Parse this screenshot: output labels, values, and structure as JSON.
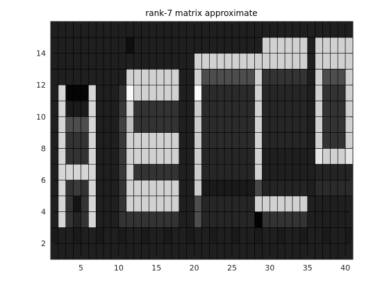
{
  "chart_data": {
    "type": "heatmap",
    "title": "rank-7 matrix approximate",
    "colormap": "gray",
    "x": [
      1,
      2,
      3,
      4,
      5,
      6,
      7,
      8,
      9,
      10,
      11,
      12,
      13,
      14,
      15,
      16,
      17,
      18,
      19,
      20,
      21,
      22,
      23,
      24,
      25,
      26,
      27,
      28,
      29,
      30,
      31,
      32,
      33,
      34,
      35,
      36,
      37,
      38,
      39,
      40
    ],
    "y": [
      1,
      2,
      3,
      4,
      5,
      6,
      7,
      8,
      9,
      10,
      11,
      12,
      13,
      14,
      15
    ],
    "xlim": [
      1,
      41
    ],
    "ylim": [
      1,
      16
    ],
    "xticks": [
      5,
      10,
      15,
      20,
      25,
      30,
      35,
      40
    ],
    "yticks": [
      2,
      4,
      6,
      8,
      10,
      12,
      14
    ],
    "clim": [
      0,
      1
    ],
    "grid": false,
    "background_level": 0.12,
    "z": [
      [
        0.12,
        0.12,
        0.12,
        0.12,
        0.12,
        0.12,
        0.12,
        0.12,
        0.12,
        0.12,
        0.12,
        0.12,
        0.12,
        0.12,
        0.12,
        0.12,
        0.12,
        0.12,
        0.12,
        0.12,
        0.12,
        0.12,
        0.12,
        0.12,
        0.12,
        0.12,
        0.12,
        0.12,
        0.12,
        0.12,
        0.12,
        0.12,
        0.12,
        0.12,
        0.12,
        0.12,
        0.12,
        0.12,
        0.12,
        0.12
      ],
      [
        0.1,
        0.12,
        0.12,
        0.1,
        0.12,
        0.12,
        0.1,
        0.12,
        0.12,
        0.1,
        0.12,
        0.12,
        0.1,
        0.12,
        0.12,
        0.1,
        0.12,
        0.12,
        0.1,
        0.12,
        0.12,
        0.1,
        0.12,
        0.12,
        0.1,
        0.12,
        0.12,
        0.1,
        0.12,
        0.12,
        0.1,
        0.12,
        0.12,
        0.1,
        0.12,
        0.12,
        0.1,
        0.12,
        0.12,
        0.1
      ],
      [
        0.12,
        0.84,
        0.2,
        0.14,
        0.2,
        0.84,
        0.12,
        0.12,
        0.12,
        0.2,
        0.2,
        0.2,
        0.2,
        0.2,
        0.2,
        0.2,
        0.2,
        0.12,
        0.12,
        0.3,
        0.15,
        0.15,
        0.15,
        0.15,
        0.15,
        0.15,
        0.15,
        0.01,
        0.2,
        0.2,
        0.2,
        0.2,
        0.2,
        0.2,
        0.12,
        0.12,
        0.12,
        0.12,
        0.12,
        0.12
      ],
      [
        0.12,
        0.84,
        0.2,
        0.08,
        0.2,
        0.84,
        0.12,
        0.12,
        0.12,
        0.2,
        0.82,
        0.82,
        0.82,
        0.82,
        0.82,
        0.82,
        0.82,
        0.12,
        0.12,
        0.3,
        0.15,
        0.15,
        0.15,
        0.15,
        0.15,
        0.15,
        0.15,
        0.82,
        0.82,
        0.82,
        0.82,
        0.82,
        0.82,
        0.82,
        0.12,
        0.12,
        0.12,
        0.12,
        0.12,
        0.12
      ],
      [
        0.12,
        0.84,
        0.2,
        0.23,
        0.2,
        0.84,
        0.12,
        0.12,
        0.12,
        0.2,
        0.82,
        0.82,
        0.82,
        0.82,
        0.82,
        0.82,
        0.82,
        0.12,
        0.12,
        0.8,
        0.1,
        0.1,
        0.1,
        0.1,
        0.1,
        0.1,
        0.1,
        0.28,
        0.14,
        0.14,
        0.14,
        0.14,
        0.14,
        0.14,
        0.12,
        0.17,
        0.17,
        0.17,
        0.17,
        0.17
      ],
      [
        0.12,
        0.84,
        0.84,
        0.84,
        0.84,
        0.84,
        0.12,
        0.12,
        0.12,
        0.22,
        0.82,
        0.2,
        0.2,
        0.2,
        0.2,
        0.2,
        0.2,
        0.12,
        0.12,
        0.8,
        0.15,
        0.15,
        0.15,
        0.15,
        0.15,
        0.15,
        0.15,
        0.82,
        0.12,
        0.12,
        0.12,
        0.12,
        0.12,
        0.12,
        0.12,
        0.14,
        0.14,
        0.14,
        0.14,
        0.14
      ],
      [
        0.12,
        0.84,
        0.2,
        0.2,
        0.2,
        0.84,
        0.12,
        0.12,
        0.12,
        0.22,
        0.82,
        0.82,
        0.82,
        0.82,
        0.82,
        0.82,
        0.82,
        0.12,
        0.12,
        0.8,
        0.15,
        0.15,
        0.15,
        0.15,
        0.15,
        0.15,
        0.15,
        0.82,
        0.12,
        0.12,
        0.12,
        0.12,
        0.12,
        0.12,
        0.12,
        0.9,
        0.82,
        0.82,
        0.82,
        0.9
      ],
      [
        0.12,
        0.84,
        0.2,
        0.2,
        0.2,
        0.84,
        0.12,
        0.12,
        0.12,
        0.22,
        0.82,
        0.82,
        0.82,
        0.82,
        0.82,
        0.82,
        0.82,
        0.12,
        0.12,
        0.8,
        0.17,
        0.17,
        0.17,
        0.17,
        0.17,
        0.17,
        0.17,
        0.82,
        0.15,
        0.15,
        0.15,
        0.15,
        0.15,
        0.15,
        0.12,
        0.82,
        0.2,
        0.2,
        0.2,
        0.82
      ],
      [
        0.12,
        0.84,
        0.3,
        0.3,
        0.3,
        0.84,
        0.12,
        0.12,
        0.12,
        0.25,
        0.75,
        0.2,
        0.2,
        0.2,
        0.2,
        0.2,
        0.2,
        0.12,
        0.12,
        0.8,
        0.17,
        0.17,
        0.17,
        0.17,
        0.17,
        0.17,
        0.17,
        0.82,
        0.15,
        0.15,
        0.15,
        0.15,
        0.15,
        0.15,
        0.12,
        0.82,
        0.2,
        0.2,
        0.2,
        0.82
      ],
      [
        0.12,
        0.84,
        0.1,
        0.1,
        0.1,
        0.84,
        0.12,
        0.12,
        0.12,
        0.22,
        0.82,
        0.2,
        0.2,
        0.2,
        0.2,
        0.2,
        0.2,
        0.12,
        0.12,
        0.8,
        0.17,
        0.17,
        0.17,
        0.17,
        0.17,
        0.17,
        0.17,
        0.82,
        0.15,
        0.15,
        0.15,
        0.15,
        0.15,
        0.15,
        0.12,
        0.82,
        0.2,
        0.2,
        0.2,
        0.82
      ],
      [
        0.12,
        0.84,
        0.02,
        0.02,
        0.02,
        0.84,
        0.12,
        0.12,
        0.12,
        0.2,
        0.98,
        0.82,
        0.82,
        0.82,
        0.82,
        0.82,
        0.82,
        0.12,
        0.12,
        0.98,
        0.17,
        0.17,
        0.17,
        0.17,
        0.17,
        0.17,
        0.17,
        0.82,
        0.15,
        0.15,
        0.15,
        0.15,
        0.15,
        0.15,
        0.12,
        0.82,
        0.2,
        0.2,
        0.2,
        0.82
      ],
      [
        0.12,
        0.12,
        0.12,
        0.12,
        0.12,
        0.12,
        0.12,
        0.12,
        0.12,
        0.12,
        0.82,
        0.82,
        0.82,
        0.82,
        0.82,
        0.82,
        0.82,
        0.12,
        0.12,
        0.82,
        0.3,
        0.3,
        0.3,
        0.3,
        0.3,
        0.3,
        0.3,
        0.82,
        0.2,
        0.2,
        0.2,
        0.2,
        0.2,
        0.2,
        0.12,
        0.82,
        0.3,
        0.3,
        0.3,
        0.82
      ],
      [
        0.12,
        0.12,
        0.12,
        0.12,
        0.12,
        0.12,
        0.12,
        0.12,
        0.12,
        0.12,
        0.12,
        0.12,
        0.12,
        0.12,
        0.12,
        0.12,
        0.12,
        0.12,
        0.12,
        0.82,
        0.82,
        0.82,
        0.82,
        0.82,
        0.82,
        0.82,
        0.82,
        0.82,
        0.82,
        0.82,
        0.82,
        0.82,
        0.82,
        0.82,
        0.12,
        0.82,
        0.82,
        0.82,
        0.82,
        0.82
      ],
      [
        0.12,
        0.12,
        0.12,
        0.12,
        0.12,
        0.12,
        0.12,
        0.12,
        0.12,
        0.12,
        0.06,
        0.12,
        0.12,
        0.12,
        0.12,
        0.12,
        0.12,
        0.12,
        0.12,
        0.12,
        0.12,
        0.12,
        0.12,
        0.12,
        0.12,
        0.12,
        0.12,
        0.12,
        0.82,
        0.82,
        0.82,
        0.82,
        0.82,
        0.82,
        0.12,
        0.82,
        0.82,
        0.82,
        0.82,
        0.82
      ],
      [
        0.12,
        0.12,
        0.12,
        0.12,
        0.12,
        0.12,
        0.12,
        0.12,
        0.12,
        0.12,
        0.12,
        0.12,
        0.12,
        0.12,
        0.12,
        0.12,
        0.12,
        0.12,
        0.12,
        0.12,
        0.12,
        0.12,
        0.12,
        0.12,
        0.12,
        0.12,
        0.12,
        0.12,
        0.12,
        0.12,
        0.12,
        0.12,
        0.12,
        0.12,
        0.12,
        0.12,
        0.12,
        0.12,
        0.12,
        0.12
      ]
    ]
  }
}
